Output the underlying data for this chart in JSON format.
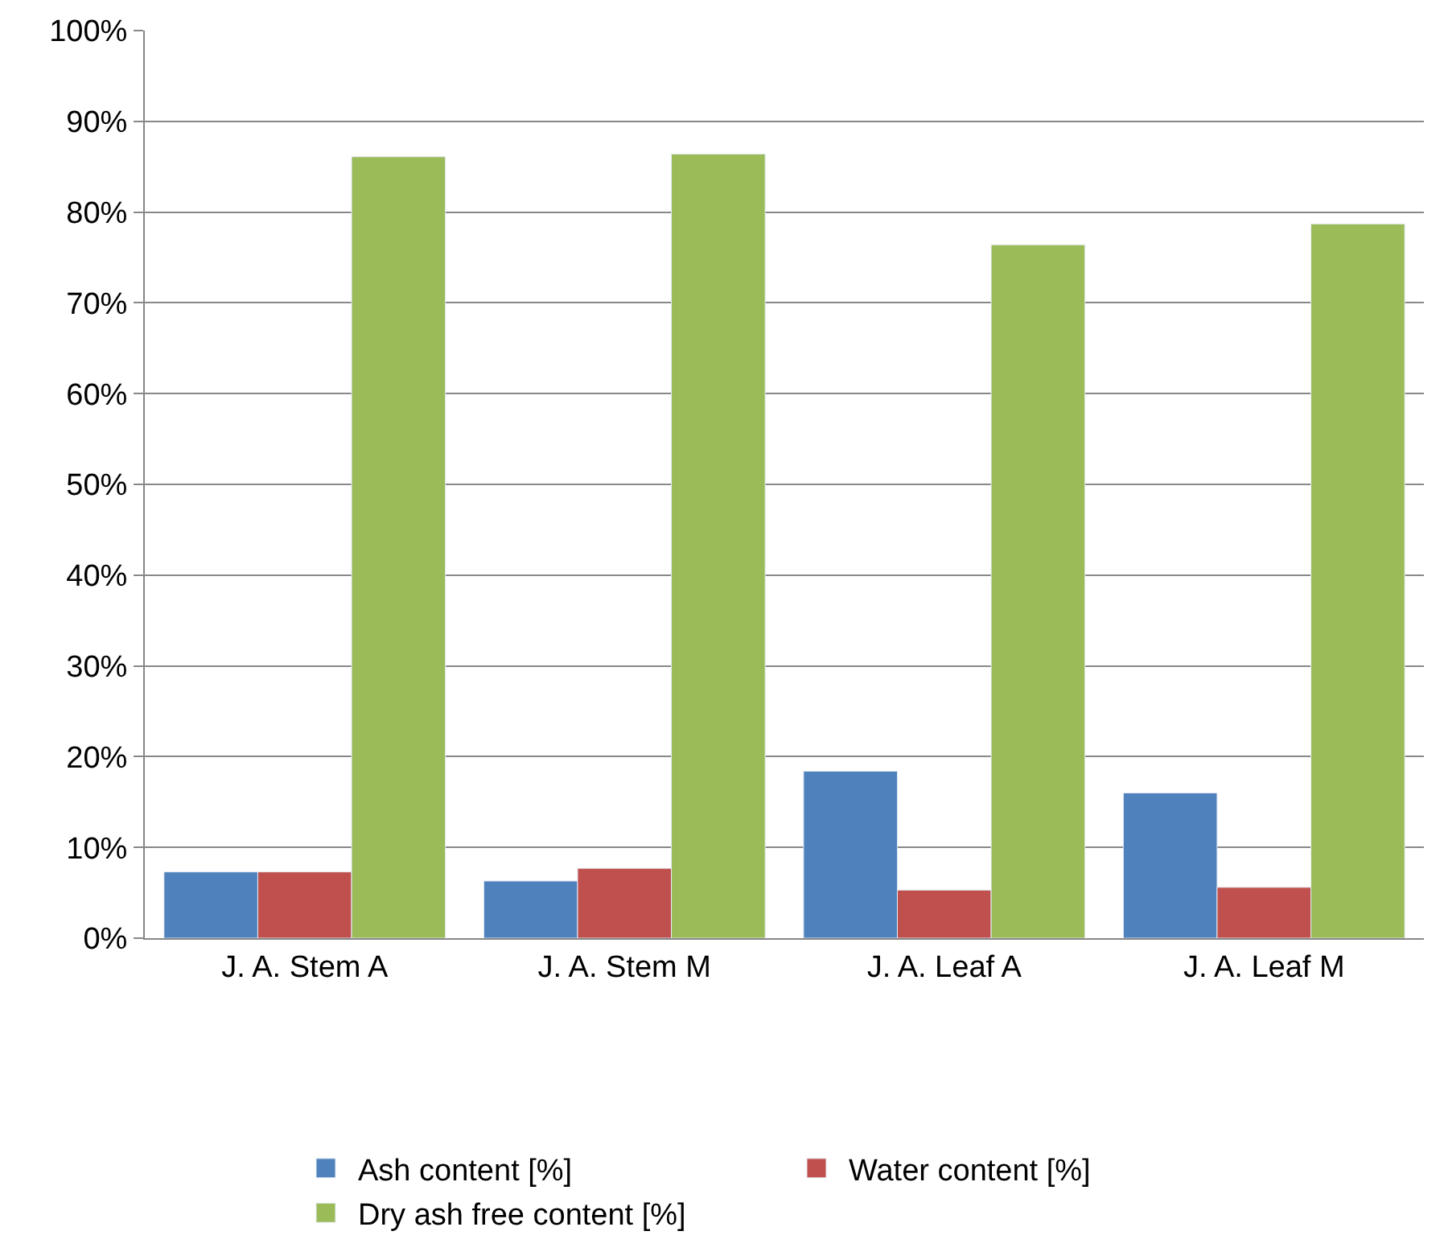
{
  "chart_data": {
    "type": "bar",
    "categories": [
      "J. A. Stem A",
      "J. A. Stem M",
      "J. A. Leaf A",
      "J. A. Leaf M"
    ],
    "series": [
      {
        "name": "Ash content [%]",
        "color": "#4f81bd",
        "values": [
          7.3,
          6.3,
          18.4,
          16.0
        ]
      },
      {
        "name": "Water content [%]",
        "color": "#c0504d",
        "values": [
          7.3,
          7.7,
          5.3,
          5.6
        ]
      },
      {
        "name": "Dry ash free content [%]",
        "color": "#9bbb59",
        "values": [
          86.1,
          86.4,
          76.4,
          78.7
        ]
      }
    ],
    "ylim": [
      0,
      100
    ],
    "yticks": [
      {
        "value": 0,
        "label": "0%"
      },
      {
        "value": 10,
        "label": "10%"
      },
      {
        "value": 20,
        "label": "20%"
      },
      {
        "value": 30,
        "label": "30%"
      },
      {
        "value": 40,
        "label": "40%"
      },
      {
        "value": 50,
        "label": "50%"
      },
      {
        "value": 60,
        "label": "60%"
      },
      {
        "value": 70,
        "label": "70%"
      },
      {
        "value": 80,
        "label": "80%"
      },
      {
        "value": 90,
        "label": "90%"
      },
      {
        "value": 100,
        "label": "100%"
      }
    ],
    "grid": "y",
    "legend": "bottom"
  }
}
